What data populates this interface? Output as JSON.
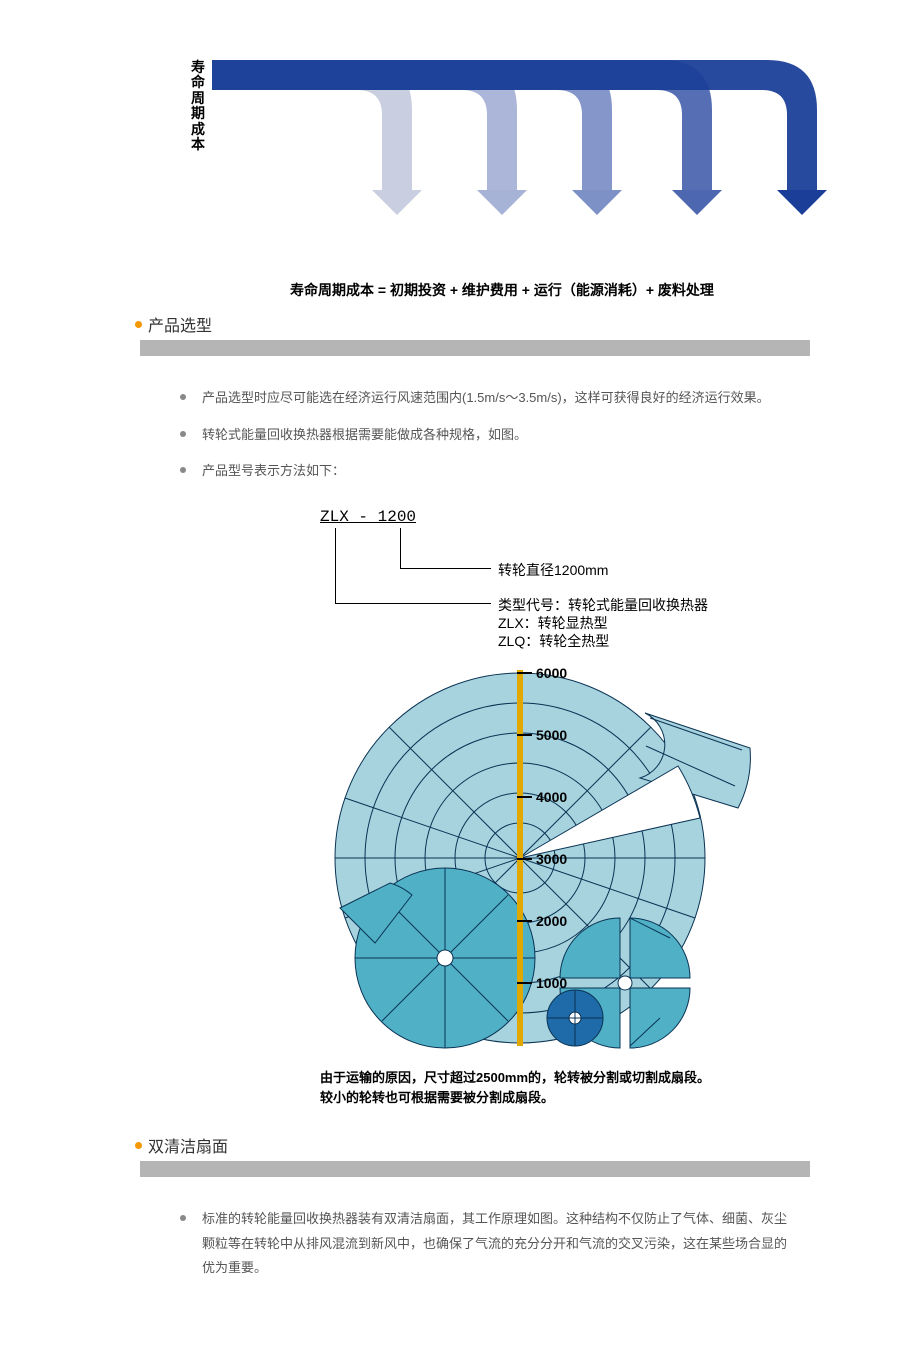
{
  "colors": {
    "arrow1": "#c9cfe0",
    "arrow2": "#a6b2d6",
    "arrow3": "#7e91c7",
    "arrow4": "#4d67b0",
    "arrow5": "#1b3f99",
    "grey_bar": "#b5b5b5",
    "orange": "#f39800",
    "wheel_light": "#a7d3de",
    "wheel_mid": "#4fb0c6",
    "wheel_dark": "#1f6aa8",
    "wheel_stroke": "#0a3354",
    "ruler": "#e0a800"
  },
  "lifecycle": {
    "vertical_label": "寿命周期成本",
    "formula": "寿命周期成本 = 初期投资 + 维护费用 + 运行（能源消耗）+ 废料处理"
  },
  "section1": {
    "title": "产品选型",
    "bullets": [
      "产品选型时应尽可能选在经济运行风速范围内(1.5m/s～3.5m/s)，这样可获得良好的经济运行效果。",
      "转轮式能量回收换热器根据需要能做成各种规格，如图。",
      "产品型号表示方法如下："
    ]
  },
  "model": {
    "code": "ZLX - 1200",
    "line1": "转轮直径1200mm",
    "line2a": "类型代号：转轮式能量回收换热器",
    "line2b": "ZLX：转轮显热型",
    "line2c": "ZLQ：转轮全热型"
  },
  "wheel": {
    "ticks": [
      "6000",
      "5000",
      "4000",
      "3000",
      "2000",
      "1000"
    ],
    "caption": "由于运输的原因，尺寸超过2500mm的，轮转被分割或切割成扇段。较小的轮转也可根据需要被分割成扇段。"
  },
  "section2": {
    "title": "双清洁扇面",
    "bullets": [
      "标准的转轮能量回收换热器装有双清洁扇面，其工作原理如图。这种结构不仅防止了气体、细菌、灰尘颗粒等在转轮中从排风混流到新风中，也确保了气流的充分分开和气流的交叉污染，这在某些场合显的优为重要。"
    ]
  }
}
